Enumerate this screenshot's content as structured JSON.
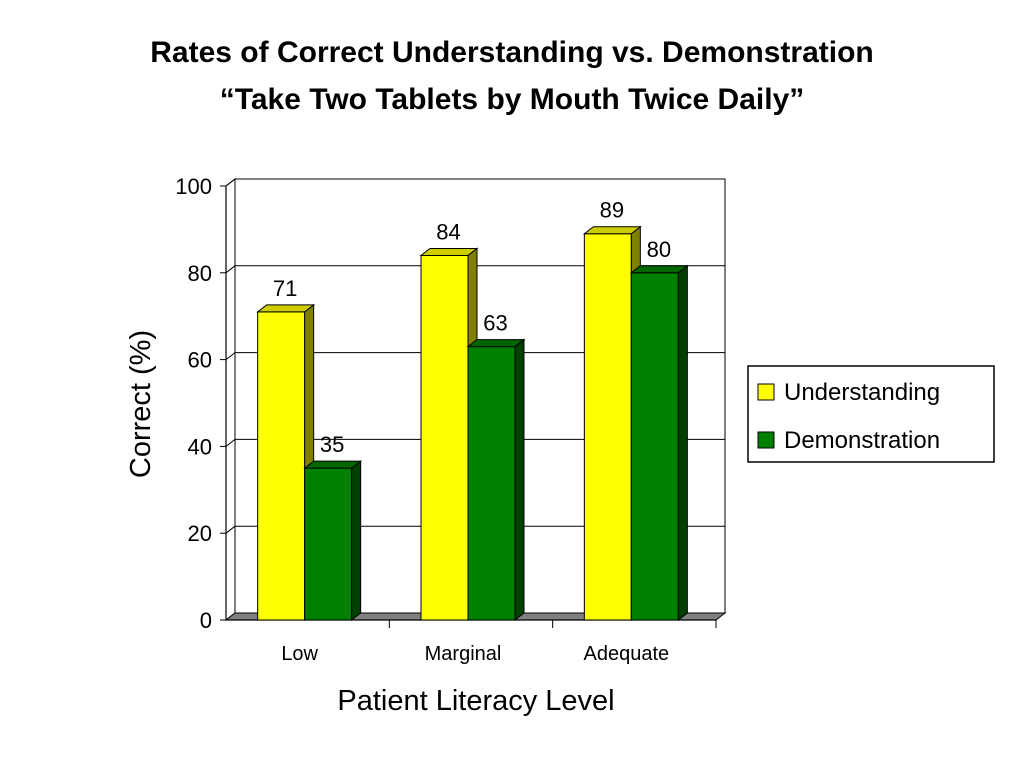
{
  "chart_data": {
    "type": "bar",
    "title": "Rates of Correct Understanding vs. Demonstration",
    "subtitle": "“Take Two Tablets by Mouth Twice Daily”",
    "xlabel": "Patient Literacy Level",
    "ylabel": "Correct (%)",
    "ylim": [
      0,
      100
    ],
    "yticks": [
      0,
      20,
      40,
      60,
      80,
      100
    ],
    "grid": true,
    "legend_position": "right",
    "categories": [
      "Low",
      "Marginal",
      "Adequate"
    ],
    "series": [
      {
        "name": "Understanding",
        "values": [
          71,
          84,
          89
        ],
        "color": "#ffff00",
        "side_color": "#808000",
        "top_color": "#cccc00"
      },
      {
        "name": "Demonstration",
        "values": [
          35,
          63,
          80
        ],
        "color": "#008000",
        "side_color": "#004000",
        "top_color": "#006600"
      }
    ]
  }
}
